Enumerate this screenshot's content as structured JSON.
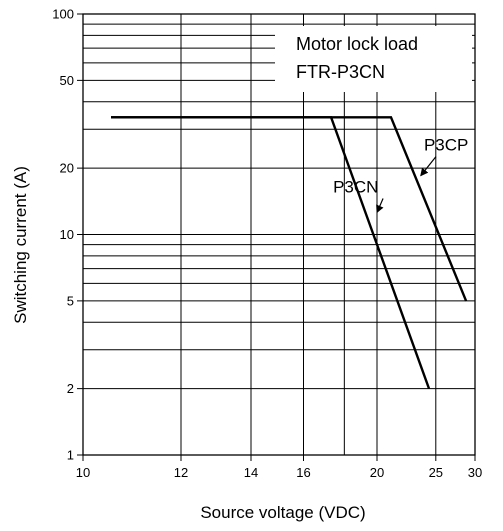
{
  "chart_data": {
    "type": "line",
    "title_lines": [
      "Motor lock load",
      "FTR-P3CN"
    ],
    "xlabel": "Source voltage (VDC)",
    "ylabel": "Switching current (A)",
    "xscale": "reciprocal",
    "yscale": "log",
    "xlim": [
      10,
      30
    ],
    "ylim": [
      1,
      100
    ],
    "x_ticks": [
      {
        "value": 10,
        "label": "10"
      },
      {
        "value": 12,
        "label": "12"
      },
      {
        "value": 14,
        "label": "14"
      },
      {
        "value": 16,
        "label": "16"
      },
      {
        "value": 20,
        "label": "20"
      },
      {
        "value": 25,
        "label": "25"
      },
      {
        "value": 30,
        "label": "30"
      }
    ],
    "y_ticks": [
      {
        "value": 1,
        "label": "1"
      },
      {
        "value": 2,
        "label": "2"
      },
      {
        "value": 5,
        "label": "5"
      },
      {
        "value": 10,
        "label": "10"
      },
      {
        "value": 20,
        "label": "20"
      },
      {
        "value": 50,
        "label": "50"
      },
      {
        "value": 100,
        "label": "100"
      }
    ],
    "x_minor_grid": [
      18
    ],
    "y_minor_grid": [
      3,
      4,
      6,
      7,
      8,
      9,
      30,
      40,
      60,
      70,
      80,
      90
    ],
    "grid": true,
    "series": [
      {
        "name": "P3CN",
        "x": [
          10.5,
          17.3,
          24.3
        ],
        "y": [
          34,
          34,
          2
        ],
        "label_x": 17.4,
        "label_y": 15.5,
        "arrow_to_x": 20.0,
        "arrow_to_y": 12.6
      },
      {
        "name": "P3CP",
        "x": [
          10.5,
          21.0,
          28.7
        ],
        "y": [
          34,
          34,
          5
        ],
        "label_x": 23.8,
        "label_y": 24,
        "arrow_to_x": 23.5,
        "arrow_to_y": 18.5
      }
    ]
  }
}
